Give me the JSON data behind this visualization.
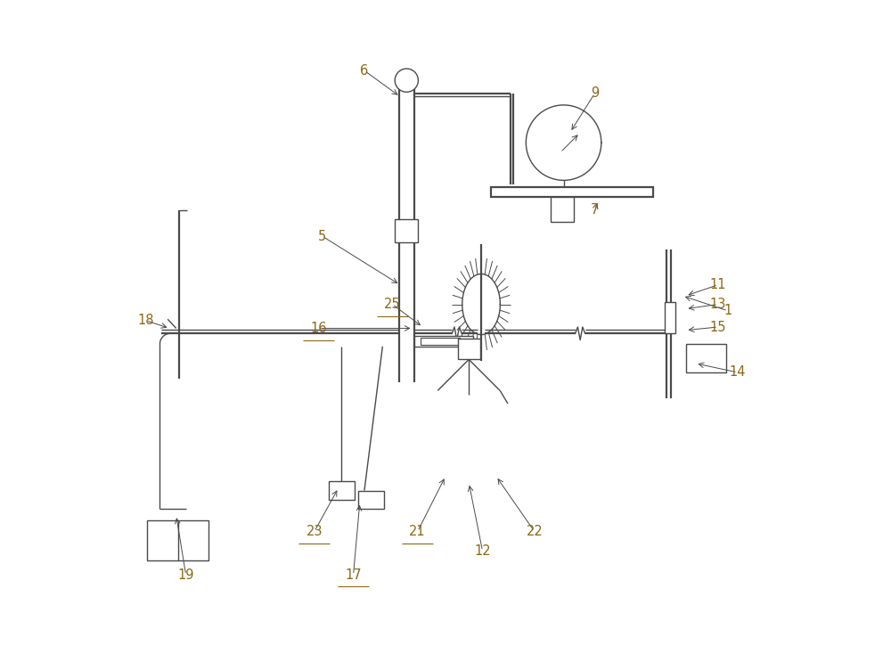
{
  "bg_color": "#ffffff",
  "line_color": "#4a4a4a",
  "label_color": "#8b6914",
  "fig_width": 10.0,
  "fig_height": 7.34,
  "dpi": 100,
  "annotations": {
    "1": {
      "txt": [
        0.935,
        0.525
      ],
      "ptr": [
        0.865,
        0.548
      ]
    },
    "5": {
      "txt": [
        0.31,
        0.64
      ],
      "ptr": [
        0.43,
        0.565
      ]
    },
    "6": {
      "txt": [
        0.375,
        0.895
      ],
      "ptr": [
        0.43,
        0.855
      ]
    },
    "7": {
      "txt": [
        0.73,
        0.68
      ],
      "ptr": [
        0.735,
        0.695
      ]
    },
    "9": {
      "txt": [
        0.73,
        0.86
      ],
      "ptr": [
        0.692,
        0.8
      ]
    },
    "11": {
      "txt": [
        0.92,
        0.565
      ],
      "ptr": [
        0.87,
        0.548
      ]
    },
    "12": {
      "txt": [
        0.557,
        0.155
      ],
      "ptr": [
        0.536,
        0.26
      ]
    },
    "13": {
      "txt": [
        0.92,
        0.535
      ],
      "ptr": [
        0.87,
        0.528
      ]
    },
    "14": {
      "txt": [
        0.95,
        0.43
      ],
      "ptr": [
        0.885,
        0.444
      ]
    },
    "15": {
      "txt": [
        0.92,
        0.5
      ],
      "ptr": [
        0.87,
        0.495
      ]
    },
    "16": {
      "txt": [
        0.305,
        0.498
      ],
      "ptr": [
        0.45,
        0.498
      ]
    },
    "17": {
      "txt": [
        0.358,
        0.118
      ],
      "ptr": [
        0.368,
        0.23
      ]
    },
    "18": {
      "txt": [
        0.038,
        0.51
      ],
      "ptr": [
        0.075,
        0.498
      ]
    },
    "19": {
      "txt": [
        0.1,
        0.118
      ],
      "ptr": [
        0.085,
        0.21
      ]
    },
    "21": {
      "txt": [
        0.457,
        0.185
      ],
      "ptr": [
        0.5,
        0.27
      ]
    },
    "22": {
      "txt": [
        0.637,
        0.185
      ],
      "ptr": [
        0.578,
        0.27
      ]
    },
    "23": {
      "txt": [
        0.298,
        0.185
      ],
      "ptr": [
        0.335,
        0.252
      ]
    },
    "25": {
      "txt": [
        0.418,
        0.535
      ],
      "ptr": [
        0.465,
        0.5
      ]
    }
  },
  "underlined": [
    "16",
    "17",
    "21",
    "23",
    "25"
  ]
}
